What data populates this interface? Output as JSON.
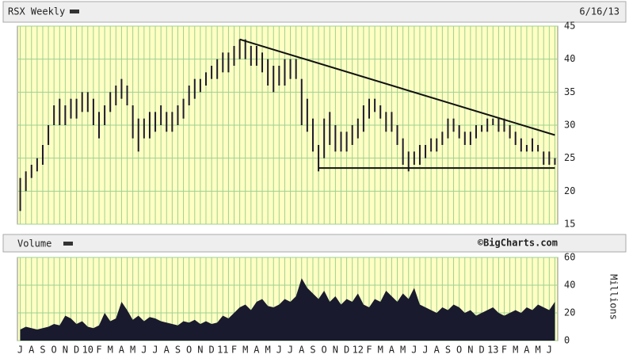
{
  "chart_data": {
    "type": "hilo",
    "title": "RSX Weekly",
    "date": "6/16/13",
    "volume_title": "Volume",
    "credit": "©BigCharts.com",
    "volume_axis_label": "Millions",
    "categories": [
      "J",
      null,
      "A",
      null,
      "S",
      null,
      "O",
      null,
      "N",
      null,
      "D",
      null,
      "10",
      null,
      "F",
      null,
      "M",
      null,
      "A",
      null,
      "M",
      null,
      "J",
      null,
      "J",
      null,
      "A",
      null,
      "S",
      null,
      "O",
      null,
      "N",
      null,
      "D",
      null,
      "11",
      null,
      "F",
      null,
      "M",
      null,
      "A",
      null,
      "M",
      null,
      "J",
      null,
      "J",
      null,
      "A",
      null,
      "S",
      null,
      "O",
      null,
      "N",
      null,
      "D",
      null,
      "12",
      null,
      "F",
      null,
      "M",
      null,
      "A",
      null,
      "M",
      null,
      "J",
      null,
      "J",
      null,
      "A",
      null,
      "S",
      null,
      "O",
      null,
      "N",
      null,
      "D",
      null,
      "13",
      null,
      "F",
      null,
      "M",
      null,
      "A",
      null,
      "M",
      null,
      "J",
      null
    ],
    "high": [
      22,
      23,
      24,
      25,
      27,
      30,
      33,
      34,
      33,
      34,
      34,
      35,
      35,
      34,
      32,
      33,
      35,
      36,
      37,
      36,
      33,
      31,
      31,
      32,
      32,
      33,
      32,
      32,
      33,
      34,
      36,
      37,
      37,
      38,
      39,
      40,
      41,
      41,
      42,
      43,
      43,
      42,
      42,
      41,
      40,
      39,
      39,
      40,
      40,
      40,
      37,
      34,
      31,
      27,
      31,
      32,
      30,
      29,
      29,
      30,
      31,
      33,
      34,
      34,
      33,
      32,
      32,
      30,
      28,
      26,
      26,
      27,
      27,
      28,
      28,
      29,
      31,
      31,
      30,
      29,
      29,
      30,
      30,
      31,
      31,
      31,
      31,
      30,
      29,
      28,
      27,
      28,
      27,
      26,
      26,
      25
    ],
    "low": [
      17,
      20,
      22,
      23,
      24,
      27,
      30,
      30,
      30,
      31,
      31,
      32,
      32,
      30,
      28,
      30,
      32,
      33,
      34,
      33,
      28,
      26,
      28,
      28,
      29,
      30,
      29,
      29,
      30,
      31,
      33,
      34,
      35,
      36,
      37,
      37,
      38,
      38,
      39,
      40,
      40,
      39,
      39,
      38,
      36,
      35,
      36,
      36,
      37,
      37,
      30,
      29,
      26,
      23,
      25,
      27,
      26,
      26,
      26,
      27,
      28,
      29,
      31,
      32,
      31,
      29,
      29,
      27,
      24,
      23,
      24,
      24,
      25,
      26,
      26,
      27,
      28,
      29,
      28,
      27,
      27,
      28,
      29,
      29,
      30,
      29,
      29,
      28,
      27,
      26,
      26,
      26,
      26,
      24,
      24,
      24
    ],
    "volume": [
      8,
      10,
      9,
      8,
      9,
      10,
      12,
      11,
      18,
      16,
      12,
      14,
      10,
      9,
      11,
      20,
      14,
      16,
      28,
      22,
      15,
      18,
      14,
      17,
      16,
      14,
      13,
      12,
      11,
      14,
      13,
      15,
      12,
      14,
      12,
      13,
      18,
      16,
      20,
      24,
      26,
      22,
      28,
      30,
      25,
      24,
      26,
      30,
      28,
      32,
      45,
      38,
      34,
      30,
      36,
      28,
      32,
      26,
      30,
      28,
      34,
      26,
      24,
      30,
      28,
      36,
      32,
      28,
      34,
      30,
      38,
      26,
      24,
      22,
      20,
      24,
      22,
      26,
      24,
      20,
      22,
      18,
      20,
      22,
      24,
      20,
      18,
      20,
      22,
      20,
      24,
      22,
      26,
      24,
      22,
      28
    ],
    "trendlines": [
      {
        "x": [
          39,
          95
        ],
        "y": [
          43,
          28.5
        ]
      },
      {
        "x": [
          53,
          95
        ],
        "y": [
          23.5,
          23.5
        ]
      }
    ],
    "color": "#1a1a2e",
    "background": "#ffffc4",
    "grid": true,
    "ylim": [
      15,
      45
    ],
    "yticks": [
      15,
      20,
      25,
      30,
      35,
      40,
      45
    ],
    "y2lim": [
      0,
      60
    ],
    "y2ticks": [
      0,
      20,
      40,
      60
    ]
  }
}
